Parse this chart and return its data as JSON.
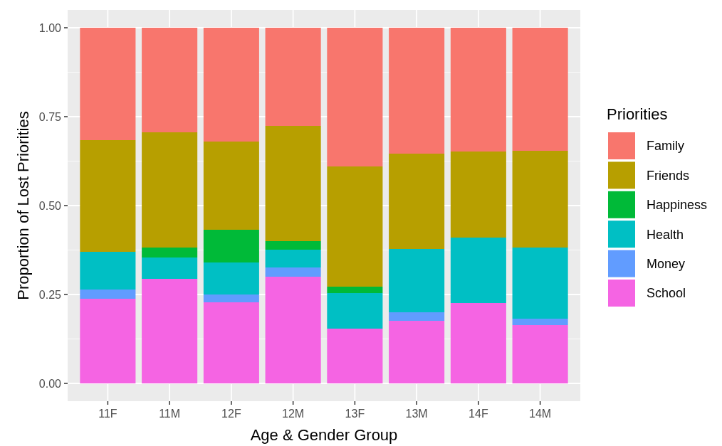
{
  "chart_data": {
    "type": "bar",
    "stacked": true,
    "xlabel": "Age & Gender Group",
    "ylabel": "Proportion of Lost Priorities",
    "legend_title": "Priorities",
    "legend": "right",
    "categories": [
      "11F",
      "11M",
      "12F",
      "12M",
      "13F",
      "13M",
      "14F",
      "14M"
    ],
    "ylim": [
      -0.05,
      1.05
    ],
    "yticks": [
      {
        "value": 0,
        "label": "0.00"
      },
      {
        "value": 0.25,
        "label": "0.25"
      },
      {
        "value": 0.5,
        "label": "0.50"
      },
      {
        "value": 0.75,
        "label": "0.75"
      },
      {
        "value": 1,
        "label": "1.00"
      }
    ],
    "grid": true,
    "series": [
      {
        "name": "School",
        "color": "#f564e3",
        "values": [
          0.238,
          0.294,
          0.228,
          0.3,
          0.154,
          0.176,
          0.226,
          0.164
        ]
      },
      {
        "name": "Money",
        "color": "#619cff",
        "values": [
          0.026,
          0,
          0.022,
          0.026,
          0,
          0.024,
          0,
          0.018
        ]
      },
      {
        "name": "Health",
        "color": "#00bfc4",
        "values": [
          0.106,
          0.06,
          0.09,
          0.05,
          0.1,
          0.178,
          0.184,
          0.2
        ]
      },
      {
        "name": "Happiness",
        "color": "#00ba38",
        "values": [
          0,
          0.028,
          0.092,
          0.024,
          0.018,
          0,
          0,
          0
        ]
      },
      {
        "name": "Friends",
        "color": "#b79f00",
        "values": [
          0.314,
          0.324,
          0.248,
          0.324,
          0.338,
          0.268,
          0.242,
          0.272
        ]
      },
      {
        "name": "Family",
        "color": "#f8766d",
        "values": [
          0.316,
          0.294,
          0.32,
          0.276,
          0.39,
          0.354,
          0.348,
          0.346
        ]
      }
    ]
  }
}
